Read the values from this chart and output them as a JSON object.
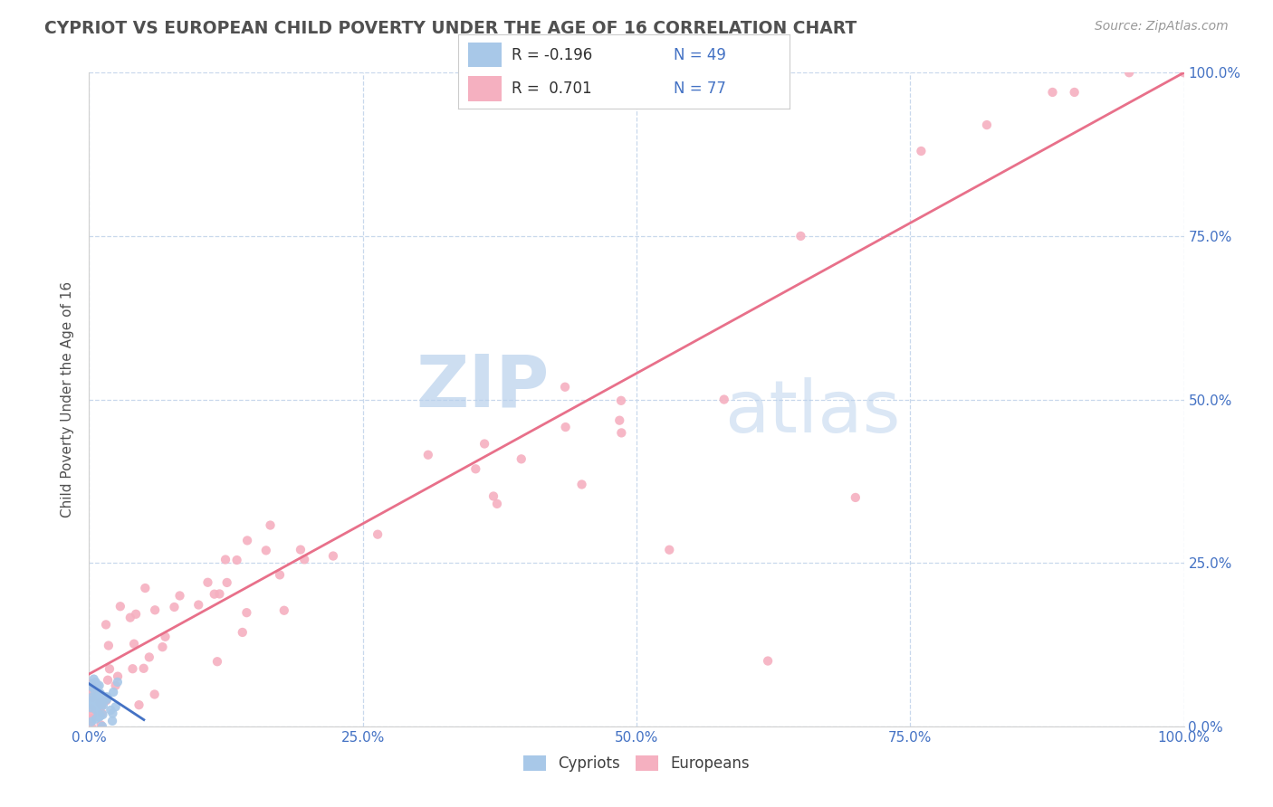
{
  "title": "CYPRIOT VS EUROPEAN CHILD POVERTY UNDER THE AGE OF 16 CORRELATION CHART",
  "source": "Source: ZipAtlas.com",
  "ylabel": "Child Poverty Under the Age of 16",
  "watermark_zip": "ZIP",
  "watermark_atlas": "atlas",
  "cypriot_R": -0.196,
  "cypriot_N": 49,
  "european_R": 0.701,
  "european_N": 77,
  "cypriot_color": "#a8c8e8",
  "european_color": "#f5b0c0",
  "cypriot_line_color": "#4472c4",
  "european_line_color": "#e8708a",
  "legend_text_color": "#4472c4",
  "title_color": "#505050",
  "axis_tick_color": "#4472c4",
  "ylabel_color": "#505050",
  "background_color": "#ffffff",
  "grid_color": "#c8d8ec",
  "xlim": [
    0,
    1.0
  ],
  "ylim": [
    0,
    1.0
  ],
  "xticks": [
    0,
    0.25,
    0.5,
    0.75,
    1.0
  ],
  "yticks": [
    0,
    0.25,
    0.5,
    0.75,
    1.0
  ],
  "xticklabels": [
    "0.0%",
    "25.0%",
    "50.0%",
    "75.0%",
    "100.0%"
  ],
  "yticklabels_right": [
    "0.0%",
    "25.0%",
    "50.0%",
    "75.0%",
    "100.0%"
  ],
  "bottom_legend_labels": [
    "Cypriots",
    "Europeans"
  ],
  "marker_size": 55,
  "eu_line_x0": 0.0,
  "eu_line_y0": 0.08,
  "eu_line_x1": 1.0,
  "eu_line_y1": 1.0,
  "cy_line_x0": 0.0,
  "cy_line_y0": 0.065,
  "cy_line_x1": 0.05,
  "cy_line_y1": 0.01
}
